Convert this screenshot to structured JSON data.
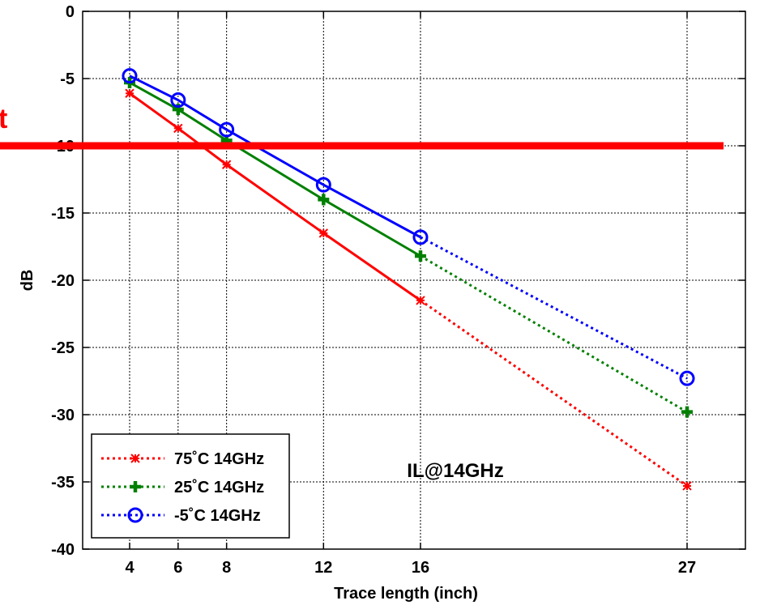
{
  "chart_data": {
    "type": "line",
    "title": "",
    "xlabel": "Trace length (inch)",
    "ylabel": "dB",
    "xlim": [
      0,
      32
    ],
    "ylim": [
      -40,
      0
    ],
    "xticks": [
      4,
      6,
      8,
      12,
      16,
      27
    ],
    "yticks": [
      0,
      -5,
      -10,
      -15,
      -20,
      -25,
      -30,
      -35,
      -40
    ],
    "grid": true,
    "legend_position": "bottom-left",
    "annotation": "IL@14GHz",
    "series": [
      {
        "name": "75˚C 14GHz",
        "color": "#ff0000",
        "marker": "asterisk",
        "x": [
          4,
          6,
          8,
          12,
          16,
          27
        ],
        "y": [
          -6.1,
          -8.7,
          -11.4,
          -16.5,
          -21.5,
          -35.3
        ]
      },
      {
        "name": "25˚C 14GHz",
        "color": "#008000",
        "marker": "plus",
        "x": [
          4,
          6,
          8,
          12,
          16,
          27
        ],
        "y": [
          -5.3,
          -7.3,
          -9.6,
          -14.0,
          -18.2,
          -29.8
        ]
      },
      {
        "name": "-5˚C 14GHz",
        "color": "#0000ff",
        "marker": "circle",
        "x": [
          4,
          6,
          8,
          12,
          16,
          27
        ],
        "y": [
          -4.8,
          -6.6,
          -8.8,
          -12.9,
          -16.8,
          -27.3
        ]
      }
    ],
    "reference_line": {
      "y": -10,
      "color": "#ff0000",
      "label_fragment": "t"
    }
  }
}
